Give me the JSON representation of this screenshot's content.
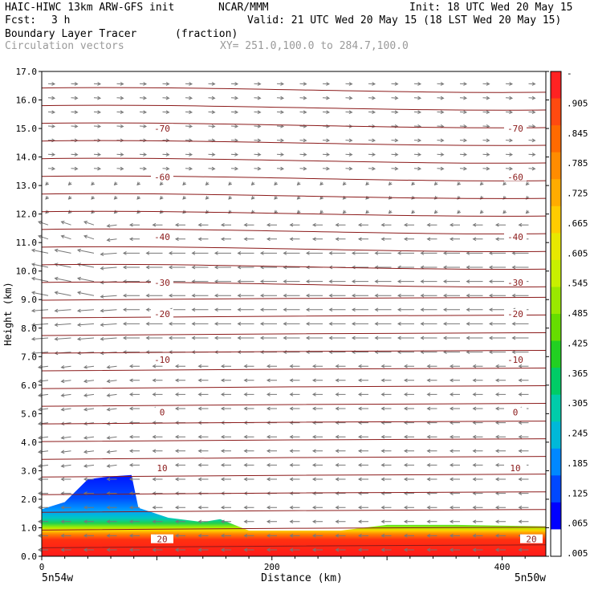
{
  "header": {
    "model_line": "HAIC-HIWC 13km ARW-GFS init",
    "org": "NCAR/MMM",
    "init": "Init: 18 UTC Wed 20 May 15",
    "fcst_label": "Fcst:",
    "fcst_value": "3 h",
    "valid": "Valid: 21 UTC Wed 20 May 15 (18 LST Wed 20 May 15)",
    "field": "Boundary Layer Tracer",
    "units": "(fraction)",
    "vectors": "Circulation vectors",
    "xy": "XY= 251.0,100.0 to 284.7,100.0"
  },
  "chart_data": {
    "type": "area",
    "ylabel": "Height (km)",
    "xlabel": "Distance (km)",
    "xlim": [
      0,
      438
    ],
    "ylim": [
      0.0,
      17.0
    ],
    "x_ticks": [
      0,
      200,
      400
    ],
    "y_ticks": [
      0.0,
      1.0,
      2.0,
      3.0,
      4.0,
      5.0,
      6.0,
      7.0,
      8.0,
      9.0,
      10.0,
      11.0,
      12.0,
      13.0,
      14.0,
      15.0,
      16.0,
      17.0
    ],
    "x_left_label": "5n54w",
    "x_right_label": "5n50w",
    "colorbar_labels": [
      "-",
      ".905",
      ".845",
      ".785",
      ".725",
      ".665",
      ".605",
      ".545",
      ".485",
      ".425",
      ".365",
      ".305",
      ".245",
      ".185",
      ".125",
      ".065",
      ".005"
    ],
    "colorbar_colors": [
      "#ff2222",
      "#ff4a10",
      "#ff6a00",
      "#ff8c00",
      "#ffac00",
      "#ffcc00",
      "#e8e800",
      "#c8f000",
      "#9ae800",
      "#66dd00",
      "#22d022",
      "#00cc66",
      "#00ccaa",
      "#00b8d8",
      "#0088ff",
      "#0048ff",
      "#0000ff",
      "#ffffff"
    ],
    "tracer_top_km": [
      {
        "x": 0,
        "h": 1.65
      },
      {
        "x": 20,
        "h": 1.9
      },
      {
        "x": 40,
        "h": 2.7
      },
      {
        "x": 60,
        "h": 2.8
      },
      {
        "x": 78,
        "h": 2.85
      },
      {
        "x": 84,
        "h": 1.7
      },
      {
        "x": 110,
        "h": 1.35
      },
      {
        "x": 140,
        "h": 1.2
      },
      {
        "x": 155,
        "h": 1.3
      },
      {
        "x": 180,
        "h": 0.9
      },
      {
        "x": 260,
        "h": 0.9
      },
      {
        "x": 300,
        "h": 1.1
      },
      {
        "x": 360,
        "h": 1.1
      },
      {
        "x": 438,
        "h": 1.05
      }
    ],
    "temperature_contours": [
      {
        "label": "20",
        "h": 0.6
      },
      {
        "label": "10",
        "h": 3.1
      },
      {
        "label": "0",
        "h": 5.05
      },
      {
        "label": "-10",
        "h": 6.9
      },
      {
        "label": "-20",
        "h": 8.5
      },
      {
        "label": "-30",
        "h": 9.6
      },
      {
        "label": "-40",
        "h": 11.2
      },
      {
        "label": "-60",
        "h": 13.3
      },
      {
        "label": "-70",
        "h": 15.0
      }
    ]
  }
}
